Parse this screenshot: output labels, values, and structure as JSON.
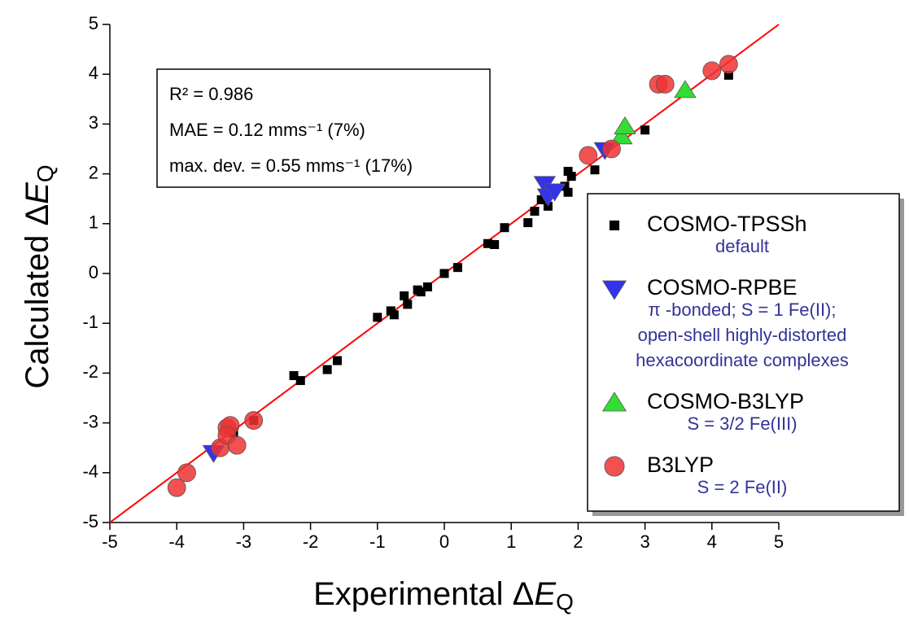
{
  "chart_data": {
    "type": "scatter",
    "xlim": [
      -5,
      5
    ],
    "ylim": [
      -5,
      5
    ],
    "xticks": [
      -5,
      -4,
      -3,
      -2,
      -1,
      0,
      1,
      2,
      3,
      4,
      5
    ],
    "yticks": [
      -5,
      -4,
      -3,
      -2,
      -1,
      0,
      1,
      2,
      3,
      4,
      5
    ],
    "x_label": {
      "text": "Experimental Δ",
      "italic": "E",
      "sub": "Q"
    },
    "y_label": {
      "text": "Calculated  Δ",
      "italic": "E",
      "sub": "Q"
    },
    "annotation": [
      "R² = 0.986",
      "MAE = 0.12 mms⁻¹ (7%)",
      "max. dev. = 0.55 mms⁻¹ (17%)"
    ],
    "fit_line": {
      "color": "#ff0000",
      "x": [
        -5,
        5
      ],
      "y": [
        -5,
        5
      ]
    },
    "series": [
      {
        "name": "COSMO-TPSSh",
        "marker": "square",
        "color": "#000000",
        "description": [
          "default"
        ],
        "x": [
          -3.15,
          -2.85,
          -2.25,
          -2.15,
          -1.75,
          -1.6,
          -1.0,
          -0.8,
          -0.75,
          -0.6,
          -0.55,
          -0.4,
          -0.35,
          -0.25,
          0,
          0.2,
          0.65,
          0.75,
          0.9,
          1.25,
          1.35,
          1.45,
          1.55,
          1.5,
          1.8,
          1.85,
          1.85,
          1.9,
          2.25,
          2.65,
          3.0,
          4.25
        ],
        "values": [
          -3.2,
          -2.95,
          -2.05,
          -2.15,
          -1.93,
          -1.75,
          -0.88,
          -0.75,
          -0.83,
          -0.45,
          -0.62,
          -0.33,
          -0.37,
          -0.27,
          0,
          0.12,
          0.6,
          0.58,
          0.92,
          1.02,
          1.25,
          1.48,
          1.35,
          1.53,
          1.75,
          1.63,
          2.05,
          1.95,
          2.08,
          2.7,
          2.88,
          3.98
        ]
      },
      {
        "name": "COSMO-RPBE",
        "marker": "triangle-down",
        "color": "#3333ee",
        "description": [
          "π -bonded; S = 1 Fe(II);",
          "open-shell highly-distorted",
          "hexacoordinate complexes"
        ],
        "x": [
          -3.45,
          1.5,
          1.55,
          1.65,
          2.4
        ],
        "values": [
          -3.6,
          1.8,
          1.55,
          1.65,
          2.48
        ]
      },
      {
        "name": "COSMO-B3LYP",
        "marker": "triangle-up",
        "color": "#33dd33",
        "description": [
          "S = 3/2 Fe(III)"
        ],
        "x": [
          2.65,
          2.7,
          3.6
        ],
        "values": [
          2.75,
          2.95,
          3.68
        ]
      },
      {
        "name": "B3LYP",
        "marker": "circle",
        "color": "#ee3333",
        "description": [
          "S = 2 Fe(II)"
        ],
        "x": [
          -4.0,
          -3.85,
          -3.35,
          -3.25,
          -3.2,
          -3.25,
          -3.1,
          -2.85,
          2.15,
          2.5,
          3.2,
          3.3,
          4.0,
          4.25
        ],
        "values": [
          -4.3,
          -4.0,
          -3.5,
          -3.1,
          -3.05,
          -3.25,
          -3.45,
          -2.95,
          2.37,
          2.5,
          3.8,
          3.8,
          4.07,
          4.2
        ]
      }
    ]
  }
}
